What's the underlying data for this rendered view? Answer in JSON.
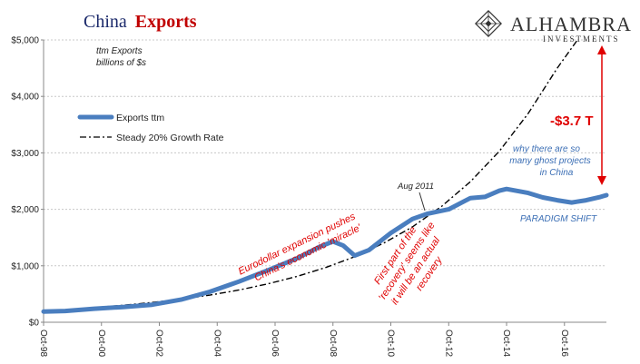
{
  "title": {
    "part1": "China",
    "part2": "Exports"
  },
  "logo": {
    "name": "ALHAMBRA",
    "sub": "INVESTMENTS",
    "icon": "diamond-lattice-icon"
  },
  "colors": {
    "exports": "#4a7ebf",
    "growth": "#000000",
    "accent_red": "#e00000",
    "accent_blue": "#3c6fb5",
    "grid": "#c8c8c8"
  },
  "chart_data": {
    "type": "line",
    "subtitle_lines": [
      "ttm Exports",
      "billions of $s"
    ],
    "xlabel": "",
    "ylabel": "",
    "ylim": [
      0,
      5000
    ],
    "xlim": [
      1998.75,
      2018.2
    ],
    "grid": true,
    "legend_position": "upper-left",
    "y_ticks": [
      {
        "value": 0,
        "label": "$0"
      },
      {
        "value": 1000,
        "label": "$1,000"
      },
      {
        "value": 2000,
        "label": "$2,000"
      },
      {
        "value": 3000,
        "label": "$3,000"
      },
      {
        "value": 4000,
        "label": "$4,000"
      },
      {
        "value": 5000,
        "label": "$5,000"
      }
    ],
    "x_ticks": [
      {
        "value": 1998.75,
        "label": "Oct-98"
      },
      {
        "value": 2000.75,
        "label": "Oct-00"
      },
      {
        "value": 2002.75,
        "label": "Oct-02"
      },
      {
        "value": 2004.75,
        "label": "Oct-04"
      },
      {
        "value": 2006.75,
        "label": "Oct-06"
      },
      {
        "value": 2008.75,
        "label": "Oct-08"
      },
      {
        "value": 2010.75,
        "label": "Oct-10"
      },
      {
        "value": 2012.75,
        "label": "Oct-12"
      },
      {
        "value": 2014.75,
        "label": "Oct-14"
      },
      {
        "value": 2016.75,
        "label": "Oct-16"
      }
    ],
    "series": [
      {
        "name": "Exports ttm",
        "style": "solid-thick",
        "x": [
          1998.75,
          1999.5,
          2000.5,
          2001.5,
          2002.5,
          2003.5,
          2004.5,
          2005.5,
          2006.5,
          2007.5,
          2008.3,
          2008.75,
          2009.1,
          2009.5,
          2010.0,
          2010.75,
          2011.5,
          2012.0,
          2012.75,
          2013.5,
          2014.0,
          2014.5,
          2014.75,
          2015.5,
          2016.0,
          2016.5,
          2017.0,
          2017.5,
          2018.0,
          2018.2
        ],
        "values": [
          190,
          200,
          240,
          270,
          310,
          400,
          540,
          720,
          920,
          1130,
          1340,
          1430,
          1360,
          1180,
          1280,
          1580,
          1830,
          1920,
          2000,
          2200,
          2220,
          2330,
          2360,
          2290,
          2210,
          2160,
          2120,
          2160,
          2220,
          2250
        ]
      },
      {
        "name": "Steady 20% Growth Rate",
        "style": "dash-dot",
        "x": [
          1998.75,
          1999.5,
          2000.5,
          2001.5,
          2002.5,
          2003.5,
          2004.5,
          2005.5,
          2006.5,
          2007.5,
          2008.5,
          2009.5,
          2010.5,
          2011.5,
          2012.5,
          2013.5,
          2014.5,
          2015.5,
          2016.5,
          2017.2
        ],
        "values": [
          190,
          220,
          260,
          300,
          350,
          410,
          480,
          570,
          680,
          810,
          970,
          1160,
          1400,
          1690,
          2050,
          2490,
          3030,
          3700,
          4500,
          5000
        ]
      }
    ],
    "annotations": {
      "eurodollar": [
        "Eurodollar  expansion pushes",
        "China's economic 'miracle'"
      ],
      "recovery": [
        "First part of the",
        "'recovery' seems like",
        "it will be an actual",
        "recovery"
      ],
      "aug2011": "Aug 2011",
      "gap_value": "-$3.7 T",
      "ghost": [
        "why there are so",
        "many ghost projects",
        "in China"
      ],
      "paradigm": "PARADIGM SHIFT"
    }
  }
}
